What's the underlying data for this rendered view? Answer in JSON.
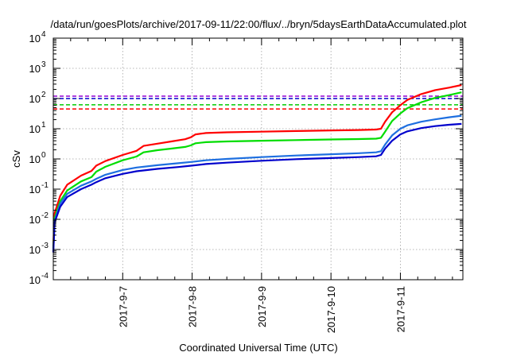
{
  "chart_data": {
    "type": "line",
    "title": "/data/run/goesPlots/archive/2017-09-11/22:00/flux/../bryn/5daysEarthDataAccumulated.plot",
    "xlabel": "Coordinated Universal Time (UTC)",
    "ylabel": "cSv",
    "y_scale": "log",
    "ylim_exp": [
      -4,
      4
    ],
    "xlim_days": [
      6.0,
      11.9
    ],
    "x_tick_labels": [
      "2017-9-7",
      "2017-9-8",
      "2017-9-9",
      "2017-9-10",
      "2017-9-11"
    ],
    "x_tick_days": [
      7,
      8,
      9,
      10,
      11
    ],
    "y_tick_exponents": [
      -4,
      -3,
      -2,
      -1,
      0,
      1,
      2,
      3,
      4
    ],
    "y_tick_base": "10",
    "grid": true,
    "legend": "none",
    "thresholds": [
      {
        "value": 120,
        "color": "#9400d3"
      },
      {
        "value": 100,
        "color": "#0000cc"
      },
      {
        "value": 62,
        "color": "#00cc00"
      },
      {
        "value": 45,
        "color": "#ff0000"
      }
    ],
    "series": [
      {
        "color": "#ff0000",
        "points": [
          [
            6.0,
            0.0013
          ],
          [
            6.02,
            0.016
          ],
          [
            6.1,
            0.06
          ],
          [
            6.2,
            0.14
          ],
          [
            6.4,
            0.28
          ],
          [
            6.55,
            0.4
          ],
          [
            6.62,
            0.6
          ],
          [
            6.75,
            0.85
          ],
          [
            7.0,
            1.35
          ],
          [
            7.2,
            1.85
          ],
          [
            7.3,
            2.7
          ],
          [
            7.5,
            3.2
          ],
          [
            7.7,
            3.8
          ],
          [
            7.9,
            4.5
          ],
          [
            7.98,
            5.2
          ],
          [
            8.05,
            6.5
          ],
          [
            8.2,
            7.2
          ],
          [
            8.5,
            7.6
          ],
          [
            9.0,
            8.0
          ],
          [
            9.5,
            8.4
          ],
          [
            10.0,
            8.8
          ],
          [
            10.4,
            9.1
          ],
          [
            10.65,
            9.4
          ],
          [
            10.72,
            10
          ],
          [
            10.78,
            17
          ],
          [
            10.88,
            35
          ],
          [
            11.0,
            60
          ],
          [
            11.1,
            90
          ],
          [
            11.3,
            140
          ],
          [
            11.5,
            190
          ],
          [
            11.7,
            230
          ],
          [
            11.88,
            280
          ]
        ]
      },
      {
        "color": "#00dd00",
        "points": [
          [
            6.0,
            0.0011
          ],
          [
            6.02,
            0.011
          ],
          [
            6.1,
            0.04
          ],
          [
            6.2,
            0.09
          ],
          [
            6.4,
            0.18
          ],
          [
            6.55,
            0.25
          ],
          [
            6.62,
            0.38
          ],
          [
            6.75,
            0.55
          ],
          [
            7.0,
            0.9
          ],
          [
            7.2,
            1.2
          ],
          [
            7.3,
            1.65
          ],
          [
            7.5,
            1.95
          ],
          [
            7.7,
            2.2
          ],
          [
            7.9,
            2.5
          ],
          [
            7.98,
            2.8
          ],
          [
            8.05,
            3.3
          ],
          [
            8.2,
            3.6
          ],
          [
            8.5,
            3.8
          ],
          [
            9.0,
            4.0
          ],
          [
            9.5,
            4.2
          ],
          [
            10.0,
            4.4
          ],
          [
            10.4,
            4.55
          ],
          [
            10.65,
            4.7
          ],
          [
            10.72,
            5
          ],
          [
            10.78,
            8
          ],
          [
            10.88,
            18
          ],
          [
            11.0,
            32
          ],
          [
            11.1,
            48
          ],
          [
            11.3,
            75
          ],
          [
            11.5,
            105
          ],
          [
            11.7,
            130
          ],
          [
            11.88,
            160
          ]
        ]
      },
      {
        "color": "#1e6fe0",
        "points": [
          [
            6.0,
            0.0009
          ],
          [
            6.02,
            0.009
          ],
          [
            6.1,
            0.033
          ],
          [
            6.2,
            0.07
          ],
          [
            6.4,
            0.13
          ],
          [
            6.55,
            0.18
          ],
          [
            6.62,
            0.22
          ],
          [
            6.75,
            0.3
          ],
          [
            7.0,
            0.43
          ],
          [
            7.2,
            0.52
          ],
          [
            7.5,
            0.62
          ],
          [
            7.8,
            0.72
          ],
          [
            8.0,
            0.8
          ],
          [
            8.2,
            0.9
          ],
          [
            8.5,
            1.0
          ],
          [
            9.0,
            1.15
          ],
          [
            9.5,
            1.3
          ],
          [
            10.0,
            1.43
          ],
          [
            10.4,
            1.55
          ],
          [
            10.65,
            1.65
          ],
          [
            10.72,
            1.8
          ],
          [
            10.78,
            3
          ],
          [
            10.88,
            6
          ],
          [
            11.0,
            10
          ],
          [
            11.1,
            13
          ],
          [
            11.3,
            17
          ],
          [
            11.5,
            20.5
          ],
          [
            11.7,
            24
          ],
          [
            11.88,
            27
          ]
        ]
      },
      {
        "color": "#0000cc",
        "points": [
          [
            6.0,
            0.0008
          ],
          [
            6.02,
            0.008
          ],
          [
            6.1,
            0.026
          ],
          [
            6.2,
            0.055
          ],
          [
            6.4,
            0.1
          ],
          [
            6.55,
            0.14
          ],
          [
            6.62,
            0.17
          ],
          [
            6.75,
            0.23
          ],
          [
            7.0,
            0.32
          ],
          [
            7.2,
            0.39
          ],
          [
            7.5,
            0.47
          ],
          [
            7.8,
            0.54
          ],
          [
            8.0,
            0.6
          ],
          [
            8.2,
            0.68
          ],
          [
            8.5,
            0.75
          ],
          [
            9.0,
            0.87
          ],
          [
            9.5,
            0.98
          ],
          [
            10.0,
            1.07
          ],
          [
            10.4,
            1.15
          ],
          [
            10.65,
            1.22
          ],
          [
            10.72,
            1.35
          ],
          [
            10.78,
            2.2
          ],
          [
            10.88,
            4
          ],
          [
            11.0,
            6.5
          ],
          [
            11.1,
            8.2
          ],
          [
            11.3,
            10.5
          ],
          [
            11.5,
            12.2
          ],
          [
            11.7,
            13.5
          ],
          [
            11.88,
            14.5
          ]
        ]
      }
    ]
  }
}
